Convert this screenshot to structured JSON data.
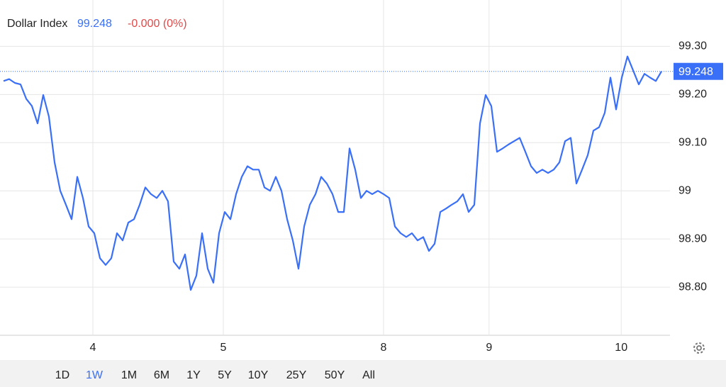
{
  "chart_data": {
    "type": "line",
    "header": {
      "name": "Dollar Index",
      "price": "99.248",
      "change": "-0.000 (0%)"
    },
    "current_value": 99.248,
    "color": "#3a6ff7",
    "values": [
      99.228,
      99.232,
      99.224,
      99.221,
      99.191,
      99.176,
      99.14,
      99.199,
      99.154,
      99.059,
      99.0,
      98.971,
      98.941,
      99.029,
      98.985,
      98.926,
      98.912,
      98.86,
      98.846,
      98.86,
      98.912,
      98.897,
      98.934,
      98.941,
      98.971,
      99.007,
      98.993,
      98.985,
      99.0,
      98.978,
      98.853,
      98.838,
      98.868,
      98.794,
      98.824,
      98.912,
      98.838,
      98.809,
      98.912,
      98.956,
      98.941,
      98.993,
      99.029,
      99.051,
      99.044,
      99.044,
      99.007,
      99.0,
      99.029,
      99.0,
      98.941,
      98.897,
      98.838,
      98.926,
      98.971,
      98.993,
      99.029,
      99.015,
      98.993,
      98.956,
      98.956,
      99.088,
      99.044,
      98.985,
      99.0,
      98.993,
      99.0,
      98.993,
      98.985,
      98.926,
      98.912,
      98.904,
      98.912,
      98.897,
      98.904,
      98.875,
      98.89,
      98.956,
      98.963,
      98.971,
      98.978,
      98.993,
      98.956,
      98.971,
      99.14,
      99.199,
      99.176,
      99.081,
      99.088,
      99.096,
      99.103,
      99.11,
      99.081,
      99.051,
      99.037,
      99.044,
      99.037,
      99.044,
      99.059,
      99.103,
      99.11,
      99.015,
      99.044,
      99.074,
      99.125,
      99.132,
      99.162,
      99.235,
      99.169,
      99.235,
      99.279,
      99.25,
      99.221,
      99.243,
      99.235,
      99.228,
      99.248
    ],
    "xlim": [
      0,
      117.5
    ],
    "xticks": [
      {
        "value": 15.75,
        "label": "4"
      },
      {
        "value": 38.75,
        "label": "5"
      },
      {
        "value": 67,
        "label": "8"
      },
      {
        "value": 85.6,
        "label": "9"
      },
      {
        "value": 108.9,
        "label": "10"
      }
    ],
    "ylim": [
      98.7,
      99.33
    ],
    "yticks": [
      {
        "value": 98.8,
        "label": "98.80"
      },
      {
        "value": 98.9,
        "label": "98.90"
      },
      99,
      {
        "value": 99.1,
        "label": "99.10"
      },
      {
        "value": 99.2,
        "label": "99.20"
      },
      {
        "value": 99.3,
        "label": "99.30"
      }
    ],
    "grid": true,
    "ranges": [
      "1D",
      "1W",
      "1M",
      "6M",
      "1Y",
      "5Y",
      "10Y",
      "25Y",
      "50Y",
      "All"
    ],
    "selected_range": "1W"
  }
}
